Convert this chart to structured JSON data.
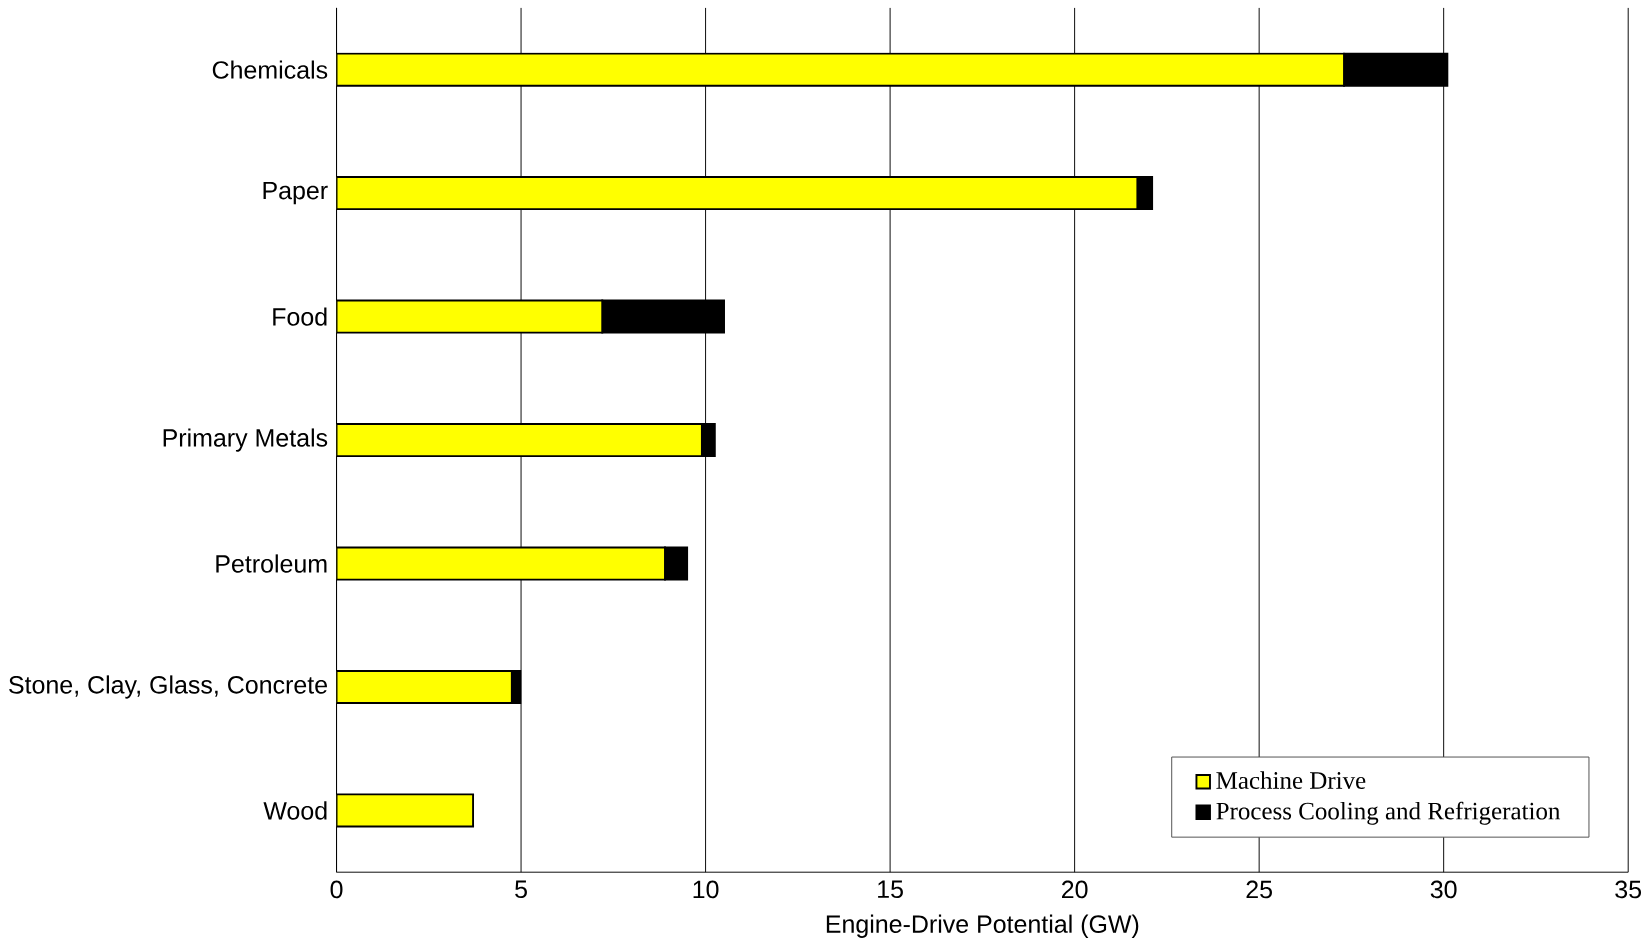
{
  "chart_data": {
    "type": "bar",
    "orientation": "horizontal",
    "stacked": true,
    "xlabel": "Engine-Drive Potential (GW)",
    "categories": [
      "Chemicals",
      "Paper",
      "Food",
      "Primary Metals",
      "Petroleum",
      "Stone, Clay, Glass, Concrete",
      "Wood"
    ],
    "series": [
      {
        "name": "Machine Drive",
        "color": "#ffff00",
        "values": [
          27.3,
          21.7,
          7.2,
          9.9,
          8.9,
          4.75,
          3.7
        ]
      },
      {
        "name": "Process Cooling and Refrigeration",
        "color": "#000000",
        "values": [
          2.8,
          0.4,
          3.3,
          0.35,
          0.6,
          0.23,
          0
        ]
      }
    ],
    "xlim": [
      0,
      35
    ],
    "xticks": [
      0,
      5,
      10,
      15,
      20,
      25,
      30,
      35
    ],
    "grid": "x",
    "legend": "bottom right"
  }
}
